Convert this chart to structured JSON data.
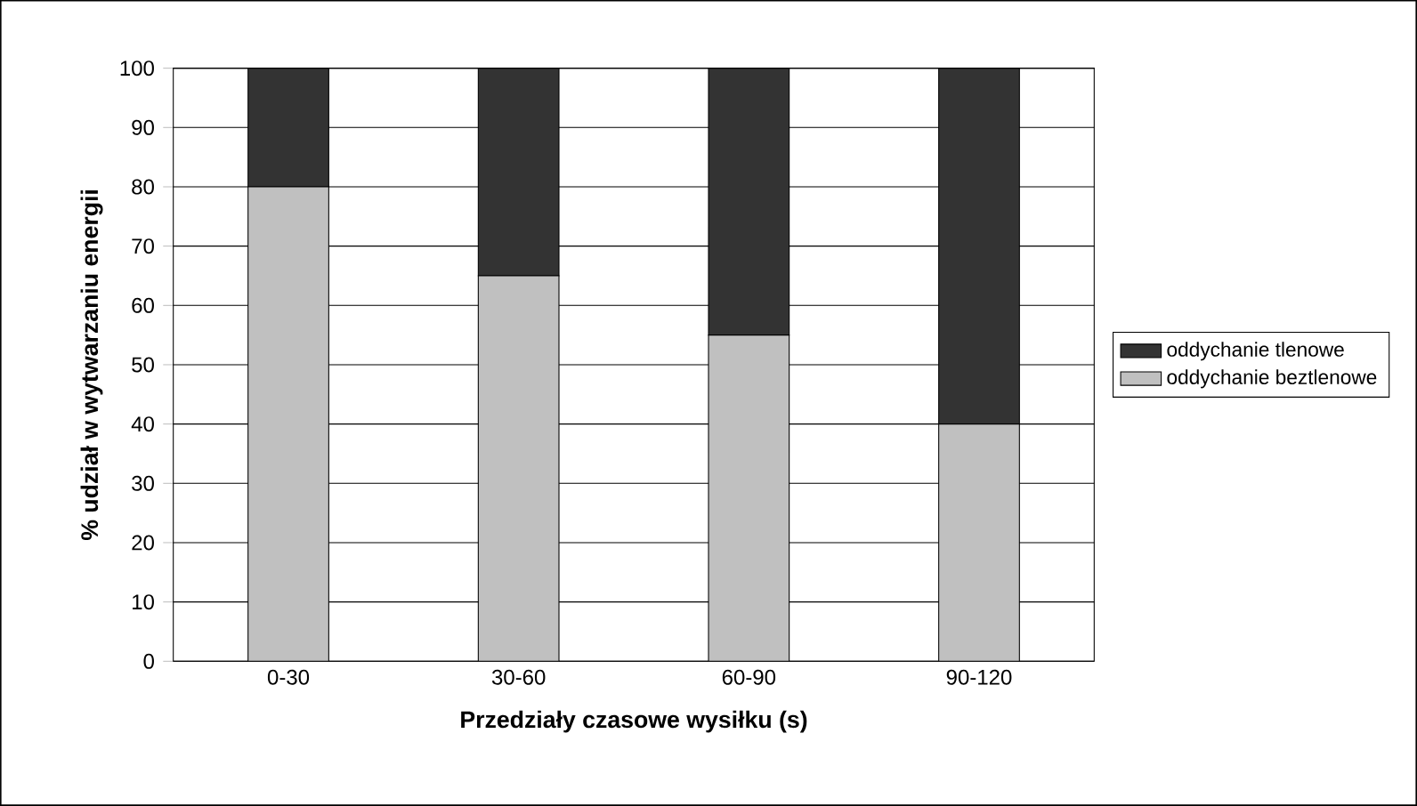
{
  "chart_data": {
    "type": "bar",
    "stacked": true,
    "xlabel": "Przedziały czasowe wysiłku (s)",
    "ylabel": "% udział w wytwarzaniu energii",
    "categories": [
      "0-30",
      "30-60",
      "60-90",
      "90-120"
    ],
    "series": [
      {
        "name": "oddychanie beztlenowe",
        "color": "#c0c0c0",
        "values": [
          80,
          65,
          55,
          40
        ]
      },
      {
        "name": "oddychanie tlenowe",
        "color": "#333333",
        "values": [
          20,
          35,
          45,
          60
        ]
      }
    ],
    "ylim": [
      0,
      100
    ],
    "yticks": [
      0,
      10,
      20,
      30,
      40,
      50,
      60,
      70,
      80,
      90,
      100
    ],
    "grid": "y",
    "legend": "right"
  }
}
